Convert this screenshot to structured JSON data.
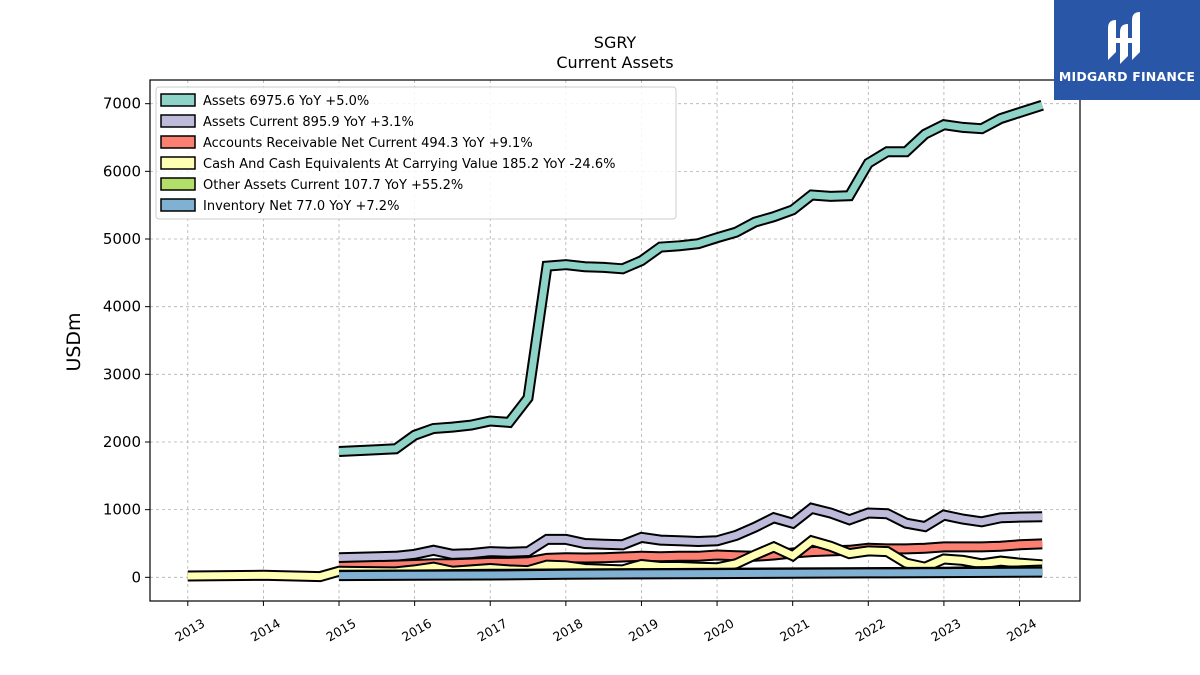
{
  "brand": {
    "name": "MIDGARD FINANCE",
    "color": "#2a56a8"
  },
  "chart_data": {
    "type": "line",
    "title": "SGRY",
    "subtitle": "Current  Assets",
    "xlabel": "",
    "ylabel": "USDm",
    "xlim": [
      2012.5,
      2024.8
    ],
    "ylim": [
      -350,
      7350
    ],
    "grid": true,
    "legend_position": "top-left",
    "x_ticks": [
      2013,
      2014,
      2015,
      2016,
      2017,
      2018,
      2019,
      2020,
      2021,
      2022,
      2023,
      2024
    ],
    "y_ticks": [
      0,
      1000,
      2000,
      3000,
      4000,
      5000,
      6000,
      7000
    ],
    "series": [
      {
        "name": "Assets",
        "legend": "Assets  6975.6 YoY +5.0%",
        "color": "#8dd3c7",
        "x": [
          2015.0,
          2015.75,
          2016.0,
          2016.25,
          2016.5,
          2016.75,
          2017.0,
          2017.25,
          2017.5,
          2017.75,
          2018.0,
          2018.25,
          2018.5,
          2018.75,
          2019.0,
          2019.25,
          2019.5,
          2019.75,
          2020.0,
          2020.25,
          2020.5,
          2020.75,
          2021.0,
          2021.25,
          2021.5,
          2021.75,
          2022.0,
          2022.25,
          2022.5,
          2022.75,
          2023.0,
          2023.25,
          2023.5,
          2023.75,
          2024.0,
          2024.3
        ],
        "y": [
          1860,
          1900,
          2100,
          2200,
          2220,
          2250,
          2310,
          2290,
          2650,
          4600,
          4620,
          4590,
          4580,
          4560,
          4680,
          4880,
          4900,
          4930,
          5020,
          5100,
          5250,
          5330,
          5430,
          5650,
          5630,
          5640,
          6120,
          6290,
          6290,
          6550,
          6690,
          6650,
          6630,
          6780,
          6870,
          6975.6
        ]
      },
      {
        "name": "Assets Current",
        "legend": "Assets Current  895.9 YoY +3.1%",
        "color": "#bebada",
        "x": [
          2015.0,
          2015.75,
          2016.0,
          2016.25,
          2016.5,
          2016.75,
          2017.0,
          2017.25,
          2017.5,
          2017.75,
          2018.0,
          2018.25,
          2018.5,
          2018.75,
          2019.0,
          2019.25,
          2019.5,
          2019.75,
          2020.0,
          2020.25,
          2020.5,
          2020.75,
          2021.0,
          2021.25,
          2021.5,
          2021.75,
          2022.0,
          2022.25,
          2022.5,
          2022.75,
          2023.0,
          2023.25,
          2023.5,
          2023.75,
          2024.0,
          2024.3
        ],
        "y": [
          290,
          310,
          340,
          400,
          340,
          350,
          380,
          370,
          380,
          560,
          560,
          500,
          490,
          480,
          590,
          550,
          540,
          530,
          540,
          620,
          740,
          880,
          800,
          1020,
          950,
          850,
          950,
          940,
          800,
          750,
          920,
          860,
          820,
          880,
          890,
          895.9
        ]
      },
      {
        "name": "Accounts Receivable Net Current",
        "legend": "Accounts Receivable Net Current  494.3 YoY +9.1%",
        "color": "#fb8072",
        "x": [
          2015.0,
          2015.75,
          2016.0,
          2016.25,
          2016.5,
          2016.75,
          2017.0,
          2017.25,
          2017.5,
          2017.75,
          2018.0,
          2018.25,
          2018.5,
          2018.75,
          2019.0,
          2019.25,
          2019.5,
          2019.75,
          2020.0,
          2020.25,
          2020.5,
          2020.75,
          2021.0,
          2021.25,
          2021.5,
          2021.75,
          2022.0,
          2022.25,
          2022.5,
          2022.75,
          2023.0,
          2023.25,
          2023.5,
          2023.75,
          2024.0,
          2024.3
        ],
        "y": [
          160,
          180,
          190,
          200,
          200,
          210,
          220,
          220,
          230,
          280,
          290,
          285,
          290,
          300,
          310,
          305,
          310,
          310,
          330,
          320,
          310,
          330,
          360,
          380,
          390,
          400,
          430,
          420,
          420,
          430,
          450,
          450,
          450,
          460,
          480,
          494.3
        ]
      },
      {
        "name": "Cash And Cash Equivalents At Carrying Value",
        "legend": "Cash And Cash Equivalents At Carrying Value  185.2 YoY -24.6%",
        "color": "#ffffb3",
        "x": [
          2013.0,
          2014.0,
          2014.75,
          2015.0,
          2015.75,
          2016.0,
          2016.25,
          2016.5,
          2016.75,
          2017.0,
          2017.25,
          2017.5,
          2017.75,
          2018.0,
          2018.25,
          2018.5,
          2018.75,
          2019.0,
          2019.25,
          2019.5,
          2019.75,
          2020.0,
          2020.25,
          2020.5,
          2020.75,
          2021.0,
          2021.25,
          2021.5,
          2021.75,
          2022.0,
          2022.25,
          2022.5,
          2022.75,
          2023.0,
          2023.25,
          2023.5,
          2023.75,
          2024.0,
          2024.3
        ],
        "y": [
          20,
          30,
          10,
          90,
          80,
          110,
          150,
          90,
          110,
          130,
          110,
          100,
          180,
          170,
          130,
          120,
          110,
          190,
          160,
          160,
          150,
          140,
          200,
          330,
          450,
          320,
          540,
          460,
          350,
          390,
          380,
          210,
          150,
          270,
          250,
          200,
          240,
          210,
          185.2
        ]
      },
      {
        "name": "Other Assets Current",
        "legend": "Other Assets Current  107.7 YoY +55.2%",
        "color": "#b3de69",
        "x": [
          2015.0,
          2016.0,
          2017.0,
          2018.0,
          2019.0,
          2020.0,
          2021.0,
          2022.0,
          2023.0,
          2024.0,
          2024.3
        ],
        "y": [
          30,
          35,
          45,
          50,
          55,
          60,
          65,
          70,
          75,
          95,
          107.7
        ]
      },
      {
        "name": "Inventory Net",
        "legend": "Inventory Net  77.0 YoY +7.2%",
        "color": "#80b1d3",
        "x": [
          2015.0,
          2016.0,
          2017.0,
          2018.0,
          2019.0,
          2020.0,
          2021.0,
          2022.0,
          2023.0,
          2024.0,
          2024.3
        ],
        "y": [
          25,
          30,
          35,
          45,
          50,
          55,
          60,
          65,
          70,
          75,
          77.0
        ]
      }
    ]
  }
}
